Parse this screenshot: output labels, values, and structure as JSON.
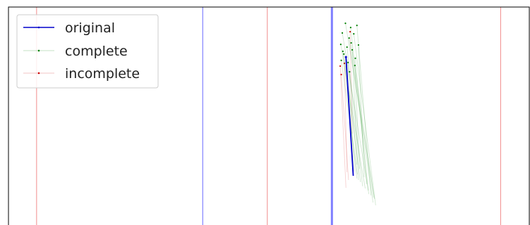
{
  "chart_data": {
    "type": "line",
    "title": "",
    "xlabel": "",
    "ylabel": "",
    "xlim": [
      0,
      100
    ],
    "ylim": [
      0,
      100
    ],
    "grid": false,
    "legend": {
      "placement": "top-left",
      "entries": [
        {
          "name": "original",
          "color": "#0000cc",
          "style": "solid-line-with-point-markers"
        },
        {
          "name": "complete",
          "color": "#008000",
          "style": "faint-line-with-point-markers"
        },
        {
          "name": "incomplete",
          "color": "#cc0000",
          "style": "faint-line-with-point-markers"
        }
      ]
    },
    "vertical_lines": [
      {
        "x": 5.4,
        "color": "#f08080",
        "alpha": 0.9,
        "width": 1
      },
      {
        "x": 37.3,
        "color": "#0000ff",
        "alpha": 0.5,
        "width": 1.2
      },
      {
        "x": 49.7,
        "color": "#f08080",
        "alpha": 0.9,
        "width": 1
      },
      {
        "x": 62.1,
        "color": "#0000ff",
        "alpha": 0.5,
        "width": 3
      },
      {
        "x": 94.5,
        "color": "#f08080",
        "alpha": 0.9,
        "width": 1
      }
    ],
    "series": [
      {
        "name": "original",
        "color": "#0000cc",
        "segments": [
          {
            "x1": 64.8,
            "y1": 23.7,
            "x2": 66.2,
            "y2": 80.0
          }
        ]
      },
      {
        "name": "complete",
        "color": "#008000",
        "segments": [
          {
            "x1": 63.8,
            "y1": 17.7,
            "x2": 68.5,
            "y2": 86.0
          },
          {
            "x1": 64.1,
            "y1": 12.3,
            "x2": 69.2,
            "y2": 88.7
          },
          {
            "x1": 64.4,
            "y1": 22.3,
            "x2": 67.6,
            "y2": 83.0
          },
          {
            "x1": 64.7,
            "y1": 7.7,
            "x2": 70.3,
            "y2": 91.0
          },
          {
            "x1": 65.0,
            "y1": 19.0,
            "x2": 68.0,
            "y2": 85.0
          },
          {
            "x1": 65.2,
            "y1": 26.3,
            "x2": 66.4,
            "y2": 78.0
          },
          {
            "x1": 65.4,
            "y1": 14.7,
            "x2": 70.0,
            "y2": 92.7
          },
          {
            "x1": 65.7,
            "y1": 9.7,
            "x2": 69.1,
            "y2": 87.0
          },
          {
            "x1": 66.0,
            "y1": 20.3,
            "x2": 67.2,
            "y2": 82.0
          },
          {
            "x1": 66.3,
            "y1": 12.7,
            "x2": 70.5,
            "y2": 94.0
          },
          {
            "x1": 66.6,
            "y1": 24.3,
            "x2": 68.8,
            "y2": 84.0
          },
          {
            "x1": 66.9,
            "y1": 8.7,
            "x2": 69.6,
            "y2": 89.3
          },
          {
            "x1": 67.2,
            "y1": 18.0,
            "x2": 68.3,
            "y2": 80.7
          },
          {
            "x1": 64.2,
            "y1": 21.0,
            "x2": 66.9,
            "y2": 81.3
          },
          {
            "x1": 65.8,
            "y1": 17.0,
            "x2": 70.1,
            "y2": 90.3
          },
          {
            "x1": 66.5,
            "y1": 27.7,
            "x2": 67.4,
            "y2": 76.7
          },
          {
            "x1": 63.9,
            "y1": 25.3,
            "x2": 67.0,
            "y2": 79.3
          },
          {
            "x1": 65.5,
            "y1": 30.7,
            "x2": 66.9,
            "y2": 74.7
          }
        ]
      },
      {
        "name": "incomplete",
        "color": "#cc0000",
        "segments": [
          {
            "x1": 63.7,
            "y1": 28.0,
            "x2": 64.8,
            "y2": 85.7
          },
          {
            "x1": 63.9,
            "y1": 32.0,
            "x2": 65.3,
            "y2": 82.0
          },
          {
            "x1": 65.6,
            "y1": 11.7,
            "x2": 66.0,
            "y2": 60.0
          },
          {
            "x1": 64.5,
            "y1": 26.7,
            "x2": 65.0,
            "y2": 78.3
          }
        ]
      }
    ]
  }
}
